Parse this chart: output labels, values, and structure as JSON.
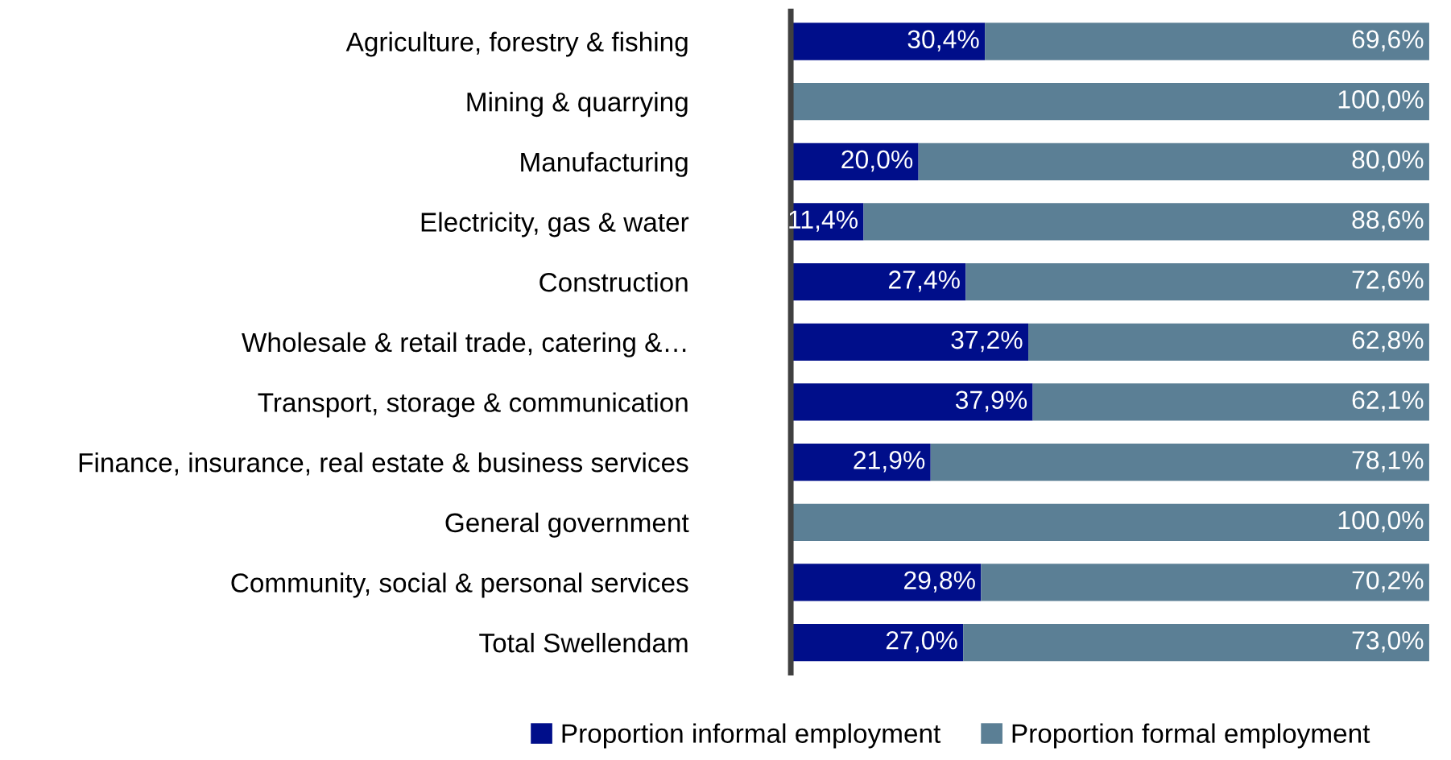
{
  "chart_data": {
    "type": "bar",
    "orientation": "horizontal",
    "stacked": true,
    "categories": [
      "Agriculture, forestry & fishing",
      "Mining & quarrying",
      "Manufacturing",
      "Electricity, gas & water",
      "Construction",
      "Wholesale & retail trade, catering &…",
      "Transport, storage & communication",
      "Finance, insurance, real estate & business services",
      "General government",
      "Community, social & personal services",
      "Total Swellendam"
    ],
    "series": [
      {
        "name": "Proportion informal employment",
        "color": "#000e8a",
        "values": [
          30.4,
          0,
          20.0,
          11.4,
          27.4,
          37.2,
          37.9,
          21.9,
          0,
          29.8,
          27.0
        ],
        "value_labels": [
          "30,4%",
          null,
          "20,0%",
          "11,4%",
          "27,4%",
          "37,2%",
          "37,9%",
          "21,9%",
          null,
          "29,8%",
          "27,0%"
        ]
      },
      {
        "name": "Proportion formal employment",
        "color": "#5b7f95",
        "values": [
          69.6,
          100.0,
          80.0,
          88.6,
          72.6,
          62.8,
          62.1,
          78.1,
          100.0,
          70.2,
          73.0
        ],
        "value_labels": [
          "69,6%",
          "100,0%",
          "80,0%",
          "88,6%",
          "72,6%",
          "62,8%",
          "62,1%",
          "78,1%",
          "100,0%",
          "70,2%",
          "73,0%"
        ]
      }
    ],
    "xlim": [
      0,
      100
    ],
    "tick_labels": "y",
    "legend": "bottom",
    "grid": false
  }
}
